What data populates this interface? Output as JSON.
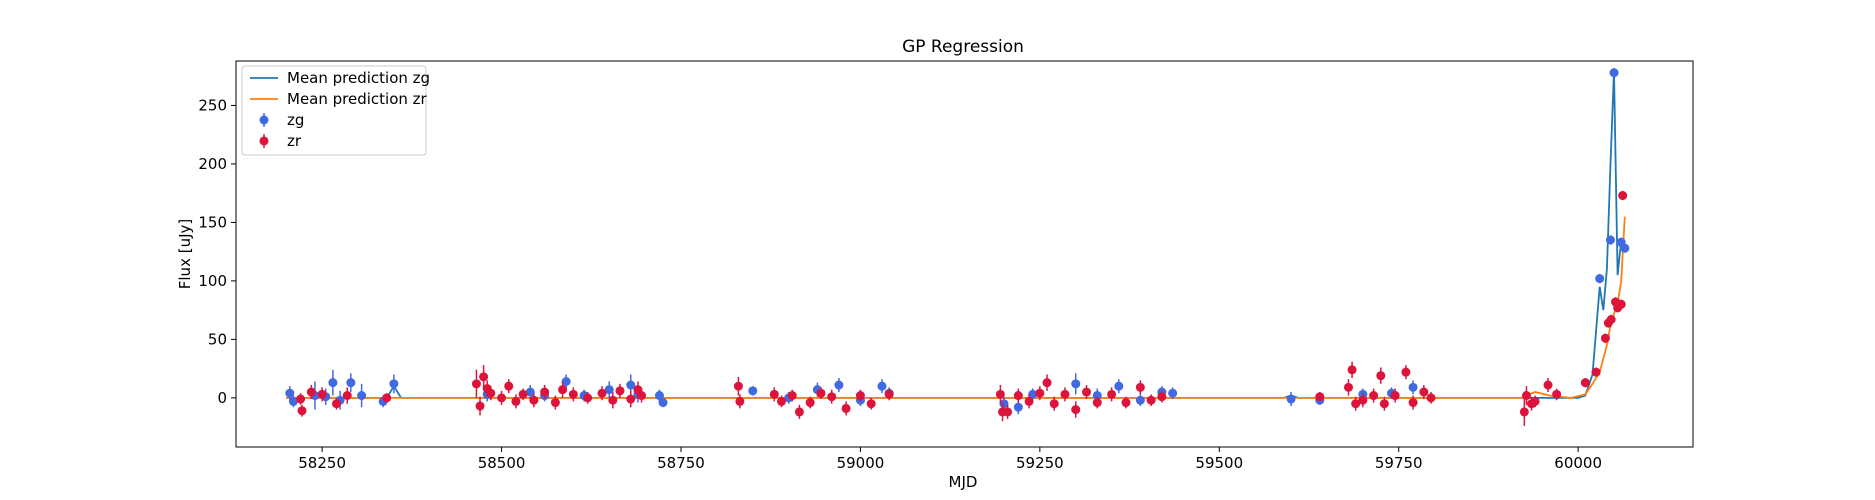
{
  "chart_data": {
    "type": "scatter",
    "title": "GP Regression",
    "xlabel": "MJD",
    "ylabel": "Flux [uJy]",
    "xlim": [
      58130,
      60160
    ],
    "ylim": [
      -42,
      288
    ],
    "xticks": [
      58250,
      58500,
      58750,
      59000,
      59250,
      59500,
      59750,
      60000
    ],
    "yticks": [
      0,
      50,
      100,
      150,
      200,
      250
    ],
    "grid": false,
    "legend": {
      "placement": "top-left",
      "entries": [
        {
          "label": "Mean prediction zg",
          "kind": "line",
          "color": "#1f77b4"
        },
        {
          "label": "Mean prediction zr",
          "kind": "line",
          "color": "#ff7f0e"
        },
        {
          "label": "zg",
          "kind": "errorbar",
          "color": "#4169e1"
        },
        {
          "label": "zr",
          "kind": "errorbar",
          "color": "#dc143c"
        }
      ]
    },
    "mean_prediction_zg": {
      "name": "Mean prediction zg",
      "color": "#1f77b4",
      "x": [
        58200,
        58340,
        58350,
        58360,
        58460,
        58720,
        58740,
        58860,
        59040,
        59060,
        59190,
        59430,
        59450,
        59590,
        59600,
        59610,
        59640,
        59670,
        59800,
        59920,
        59990,
        60000,
        60010,
        60020,
        60030,
        60035,
        60040,
        60045,
        60050,
        60055,
        60060,
        60065
      ],
      "y": [
        0,
        0,
        10,
        0,
        0,
        0,
        0,
        0,
        0,
        0,
        0,
        0,
        0,
        0,
        2,
        0,
        0,
        0,
        0,
        0,
        0,
        0,
        2,
        20,
        95,
        75,
        110,
        200,
        280,
        105,
        135,
        130
      ]
    },
    "mean_prediction_zr": {
      "name": "Mean prediction zr",
      "color": "#ff7f0e",
      "x": [
        58200,
        58460,
        58720,
        58860,
        59040,
        59190,
        59430,
        59640,
        59670,
        59800,
        59920,
        59940,
        59960,
        59990,
        60010,
        60020,
        60030,
        60040,
        60045,
        60050,
        60055,
        60060,
        60065
      ],
      "y": [
        0,
        0,
        0,
        0,
        0,
        0,
        0,
        0,
        0,
        0,
        0,
        5,
        2,
        0,
        3,
        12,
        22,
        45,
        62,
        72,
        80,
        100,
        155
      ]
    },
    "zg": {
      "name": "zg",
      "color": "#4169e1",
      "points": [
        {
          "x": 58205,
          "y": 4,
          "err": 6
        },
        {
          "x": 58210,
          "y": -3,
          "err": 5
        },
        {
          "x": 58240,
          "y": 2,
          "err": 12
        },
        {
          "x": 58255,
          "y": 1,
          "err": 7
        },
        {
          "x": 58265,
          "y": 13,
          "err": 11
        },
        {
          "x": 58275,
          "y": -2,
          "err": 8
        },
        {
          "x": 58290,
          "y": 13,
          "err": 8
        },
        {
          "x": 58305,
          "y": 2,
          "err": 10
        },
        {
          "x": 58335,
          "y": -3,
          "err": 5
        },
        {
          "x": 58350,
          "y": 12,
          "err": 8
        },
        {
          "x": 58480,
          "y": 3,
          "err": 6
        },
        {
          "x": 58540,
          "y": 5,
          "err": 6
        },
        {
          "x": 58560,
          "y": 2,
          "err": 5
        },
        {
          "x": 58590,
          "y": 14,
          "err": 6
        },
        {
          "x": 58615,
          "y": 2,
          "err": 5
        },
        {
          "x": 58650,
          "y": 7,
          "err": 7
        },
        {
          "x": 58680,
          "y": 11,
          "err": 9
        },
        {
          "x": 58690,
          "y": 3,
          "err": 7
        },
        {
          "x": 58720,
          "y": 2,
          "err": 5
        },
        {
          "x": 58725,
          "y": -4,
          "err": 4
        },
        {
          "x": 58850,
          "y": 6,
          "err": 4
        },
        {
          "x": 58900,
          "y": 0,
          "err": 5
        },
        {
          "x": 58940,
          "y": 7,
          "err": 6
        },
        {
          "x": 58970,
          "y": 11,
          "err": 6
        },
        {
          "x": 59000,
          "y": -2,
          "err": 5
        },
        {
          "x": 59030,
          "y": 10,
          "err": 6
        },
        {
          "x": 59040,
          "y": 4,
          "err": 5
        },
        {
          "x": 59200,
          "y": -5,
          "err": 6
        },
        {
          "x": 59220,
          "y": -8,
          "err": 6
        },
        {
          "x": 59240,
          "y": 3,
          "err": 5
        },
        {
          "x": 59300,
          "y": 12,
          "err": 9
        },
        {
          "x": 59330,
          "y": 2,
          "err": 6
        },
        {
          "x": 59360,
          "y": 10,
          "err": 6
        },
        {
          "x": 59390,
          "y": -2,
          "err": 5
        },
        {
          "x": 59420,
          "y": 5,
          "err": 5
        },
        {
          "x": 59435,
          "y": 4,
          "err": 5
        },
        {
          "x": 59600,
          "y": -1,
          "err": 6
        },
        {
          "x": 59640,
          "y": -2,
          "err": 4
        },
        {
          "x": 59700,
          "y": 3,
          "err": 5
        },
        {
          "x": 59740,
          "y": 4,
          "err": 5
        },
        {
          "x": 59770,
          "y": 9,
          "err": 6
        },
        {
          "x": 60030,
          "y": 102,
          "err": 4
        },
        {
          "x": 60045,
          "y": 135,
          "err": 4
        },
        {
          "x": 60050,
          "y": 278,
          "err": 4
        },
        {
          "x": 60060,
          "y": 133,
          "err": 4
        },
        {
          "x": 60065,
          "y": 128,
          "err": 4
        }
      ]
    },
    "zr": {
      "name": "zr",
      "color": "#dc143c",
      "points": [
        {
          "x": 58220,
          "y": -1,
          "err": 5
        },
        {
          "x": 58222,
          "y": -11,
          "err": 5
        },
        {
          "x": 58235,
          "y": 5,
          "err": 6
        },
        {
          "x": 58250,
          "y": 3,
          "err": 6
        },
        {
          "x": 58270,
          "y": -5,
          "err": 5
        },
        {
          "x": 58285,
          "y": 2,
          "err": 7
        },
        {
          "x": 58340,
          "y": 0,
          "err": 4
        },
        {
          "x": 58465,
          "y": 12,
          "err": 12
        },
        {
          "x": 58470,
          "y": -7,
          "err": 8
        },
        {
          "x": 58475,
          "y": 18,
          "err": 10
        },
        {
          "x": 58480,
          "y": 8,
          "err": 7
        },
        {
          "x": 58485,
          "y": 4,
          "err": 6
        },
        {
          "x": 58500,
          "y": 0,
          "err": 6
        },
        {
          "x": 58510,
          "y": 10,
          "err": 6
        },
        {
          "x": 58520,
          "y": -3,
          "err": 6
        },
        {
          "x": 58530,
          "y": 3,
          "err": 5
        },
        {
          "x": 58545,
          "y": -2,
          "err": 6
        },
        {
          "x": 58560,
          "y": 5,
          "err": 6
        },
        {
          "x": 58575,
          "y": -4,
          "err": 6
        },
        {
          "x": 58585,
          "y": 7,
          "err": 7
        },
        {
          "x": 58600,
          "y": 3,
          "err": 6
        },
        {
          "x": 58620,
          "y": 0,
          "err": 5
        },
        {
          "x": 58640,
          "y": 4,
          "err": 6
        },
        {
          "x": 58655,
          "y": -2,
          "err": 7
        },
        {
          "x": 58665,
          "y": 6,
          "err": 6
        },
        {
          "x": 58680,
          "y": -1,
          "err": 7
        },
        {
          "x": 58690,
          "y": 7,
          "err": 7
        },
        {
          "x": 58695,
          "y": 2,
          "err": 6
        },
        {
          "x": 58830,
          "y": 10,
          "err": 8
        },
        {
          "x": 58832,
          "y": -3,
          "err": 6
        },
        {
          "x": 58880,
          "y": 3,
          "err": 6
        },
        {
          "x": 58890,
          "y": -3,
          "err": 5
        },
        {
          "x": 58905,
          "y": 2,
          "err": 5
        },
        {
          "x": 58915,
          "y": -12,
          "err": 6
        },
        {
          "x": 58930,
          "y": -4,
          "err": 5
        },
        {
          "x": 58945,
          "y": 4,
          "err": 5
        },
        {
          "x": 58960,
          "y": 1,
          "err": 6
        },
        {
          "x": 58980,
          "y": -9,
          "err": 6
        },
        {
          "x": 59000,
          "y": 2,
          "err": 5
        },
        {
          "x": 59015,
          "y": -5,
          "err": 5
        },
        {
          "x": 59040,
          "y": 3,
          "err": 5
        },
        {
          "x": 59195,
          "y": 3,
          "err": 8
        },
        {
          "x": 59198,
          "y": -12,
          "err": 8
        },
        {
          "x": 59205,
          "y": -12,
          "err": 6
        },
        {
          "x": 59220,
          "y": 2,
          "err": 6
        },
        {
          "x": 59235,
          "y": -3,
          "err": 6
        },
        {
          "x": 59250,
          "y": 4,
          "err": 6
        },
        {
          "x": 59260,
          "y": 13,
          "err": 7
        },
        {
          "x": 59270,
          "y": -5,
          "err": 6
        },
        {
          "x": 59285,
          "y": 3,
          "err": 6
        },
        {
          "x": 59300,
          "y": -10,
          "err": 7
        },
        {
          "x": 59315,
          "y": 5,
          "err": 6
        },
        {
          "x": 59330,
          "y": -4,
          "err": 5
        },
        {
          "x": 59350,
          "y": 3,
          "err": 6
        },
        {
          "x": 59370,
          "y": -4,
          "err": 5
        },
        {
          "x": 59390,
          "y": 9,
          "err": 6
        },
        {
          "x": 59405,
          "y": -2,
          "err": 5
        },
        {
          "x": 59420,
          "y": 1,
          "err": 5
        },
        {
          "x": 59640,
          "y": 1,
          "err": 4
        },
        {
          "x": 59680,
          "y": 9,
          "err": 7
        },
        {
          "x": 59685,
          "y": 24,
          "err": 7
        },
        {
          "x": 59690,
          "y": -5,
          "err": 6
        },
        {
          "x": 59700,
          "y": -2,
          "err": 6
        },
        {
          "x": 59715,
          "y": 2,
          "err": 6
        },
        {
          "x": 59725,
          "y": 19,
          "err": 7
        },
        {
          "x": 59730,
          "y": -5,
          "err": 6
        },
        {
          "x": 59745,
          "y": 2,
          "err": 6
        },
        {
          "x": 59760,
          "y": 22,
          "err": 6
        },
        {
          "x": 59770,
          "y": -4,
          "err": 6
        },
        {
          "x": 59785,
          "y": 5,
          "err": 6
        },
        {
          "x": 59795,
          "y": 0,
          "err": 5
        },
        {
          "x": 59925,
          "y": -12,
          "err": 12
        },
        {
          "x": 59928,
          "y": 2,
          "err": 8
        },
        {
          "x": 59935,
          "y": -5,
          "err": 6
        },
        {
          "x": 59940,
          "y": -3,
          "err": 5
        },
        {
          "x": 59958,
          "y": 11,
          "err": 6
        },
        {
          "x": 59970,
          "y": 3,
          "err": 5
        },
        {
          "x": 60010,
          "y": 13,
          "err": 4
        },
        {
          "x": 60025,
          "y": 22,
          "err": 4
        },
        {
          "x": 60038,
          "y": 51,
          "err": 4
        },
        {
          "x": 60042,
          "y": 64,
          "err": 4
        },
        {
          "x": 60046,
          "y": 67,
          "err": 4
        },
        {
          "x": 60052,
          "y": 82,
          "err": 4
        },
        {
          "x": 60055,
          "y": 77,
          "err": 4
        },
        {
          "x": 60060,
          "y": 80,
          "err": 4
        },
        {
          "x": 60062,
          "y": 173,
          "err": 4
        }
      ]
    }
  }
}
